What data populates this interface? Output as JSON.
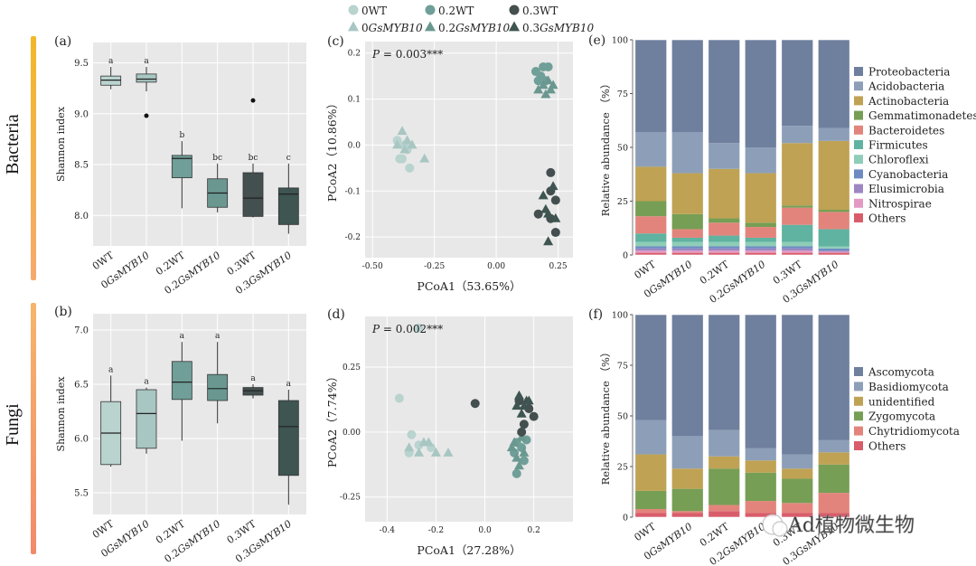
{
  "colors": {
    "wt0": "#b9d3cf",
    "gs0": "#a8c6c2",
    "wt02": "#6f9f98",
    "gs02": "#6a9891",
    "wt03": "#444f4f",
    "gs03": "#3e5551",
    "panel_bg": "#e8e8e8",
    "bacteria_bar_top": "#f3b728",
    "bacteria_bar_bottom": "#f5a96e",
    "fungi_bar_top": "#f6b56b",
    "fungi_bar_bottom": "#f28a6a"
  },
  "side_labels": {
    "bacteria": "Bacteria",
    "fungi": "Fungi"
  },
  "legend": {
    "items": [
      {
        "label": "0WT",
        "shape": "circle",
        "color": "#b9d3cf"
      },
      {
        "label": "0.2WT",
        "shape": "circle",
        "color": "#6f9f98"
      },
      {
        "label": "0.3WT",
        "shape": "circle",
        "color": "#444f4f"
      },
      {
        "label": "0GsMYB10",
        "shape": "triangle",
        "color": "#a8c6c2"
      },
      {
        "label": "0.2GsMYB10",
        "shape": "triangle",
        "color": "#6a9891"
      },
      {
        "label": "0.3GsMYB10",
        "shape": "triangle",
        "color": "#3e5551"
      }
    ]
  },
  "watermark": {
    "text": "Ad植物微生物",
    "icon": "wechat-icon"
  },
  "chart_data": [
    {
      "id": "a",
      "panel_label": "(a)",
      "type": "box",
      "ylabel": "Shannon index",
      "ylim": [
        7.7,
        9.7
      ],
      "yticks": [
        8.0,
        8.5,
        9.0,
        9.5
      ],
      "groups": [
        {
          "label": "0WT",
          "min": 9.24,
          "q1": 9.28,
          "median": 9.33,
          "q3": 9.37,
          "max": 9.46,
          "outliers": [],
          "letter": "a",
          "color": "#b9d3cf"
        },
        {
          "label": "0GsMYB10",
          "min": 9.22,
          "q1": 9.31,
          "median": 9.34,
          "q3": 9.39,
          "max": 9.46,
          "outliers": [
            8.98
          ],
          "letter": "a",
          "color": "#a8c6c2"
        },
        {
          "label": "0.2WT",
          "min": 8.07,
          "q1": 8.37,
          "median": 8.56,
          "q3": 8.59,
          "max": 8.73,
          "outliers": [],
          "letter": "b",
          "color": "#6f9f98"
        },
        {
          "label": "0.2GsMYB10",
          "min": 8.03,
          "q1": 8.08,
          "median": 8.22,
          "q3": 8.36,
          "max": 8.51,
          "outliers": [],
          "letter": "bc",
          "color": "#6a9891"
        },
        {
          "label": "0.3WT",
          "min": 7.98,
          "q1": 7.99,
          "median": 8.17,
          "q3": 8.42,
          "max": 8.51,
          "outliers": [
            9.13
          ],
          "letter": "bc",
          "color": "#444f4f"
        },
        {
          "label": "0.3GsMYB10",
          "min": 7.82,
          "q1": 7.91,
          "median": 8.21,
          "q3": 8.27,
          "max": 8.51,
          "outliers": [],
          "letter": "c",
          "color": "#3e5551"
        }
      ]
    },
    {
      "id": "b",
      "panel_label": "(b)",
      "type": "box",
      "ylabel": "Shannon index",
      "ylim": [
        5.3,
        7.15
      ],
      "yticks": [
        5.5,
        6.0,
        6.5,
        7.0
      ],
      "groups": [
        {
          "label": "0WT",
          "min": 5.74,
          "q1": 5.76,
          "median": 6.05,
          "q3": 6.34,
          "max": 6.58,
          "outliers": [],
          "letter": "a",
          "color": "#b9d3cf"
        },
        {
          "label": "0GsMYB10",
          "min": 5.86,
          "q1": 5.91,
          "median": 6.23,
          "q3": 6.45,
          "max": 6.47,
          "outliers": [],
          "letter": "a",
          "color": "#a8c6c2"
        },
        {
          "label": "0.2WT",
          "min": 5.98,
          "q1": 6.36,
          "median": 6.52,
          "q3": 6.71,
          "max": 6.89,
          "outliers": [],
          "letter": "a",
          "color": "#6f9f98"
        },
        {
          "label": "0.2GsMYB10",
          "min": 6.14,
          "q1": 6.35,
          "median": 6.46,
          "q3": 6.59,
          "max": 6.89,
          "outliers": [],
          "letter": "a",
          "color": "#6a9891"
        },
        {
          "label": "0.3WT",
          "min": 6.37,
          "q1": 6.4,
          "median": 6.44,
          "q3": 6.47,
          "max": 6.5,
          "outliers": [],
          "letter": "a",
          "color": "#444f4f"
        },
        {
          "label": "0.3GsMYB10",
          "min": 5.39,
          "q1": 5.66,
          "median": 6.11,
          "q3": 6.35,
          "max": 6.45,
          "outliers": [],
          "letter": "a",
          "color": "#3e5551"
        }
      ]
    },
    {
      "id": "c",
      "panel_label": "(c)",
      "type": "scatter",
      "xlabel": "PCoA1（53.65%）",
      "ylabel": "PCoA2（10.86%）",
      "annotation_p": "P",
      "annotation_value": " = 0.003***",
      "xlim": [
        -0.53,
        0.31
      ],
      "ylim": [
        -0.245,
        0.225
      ],
      "xticks": [
        -0.5,
        -0.25,
        0.0,
        0.25
      ],
      "xtick_labels": [
        "-0.50",
        "-0.25",
        "0.00",
        "0.25"
      ],
      "yticks": [
        -0.2,
        -0.1,
        0.0,
        0.1,
        0.2
      ],
      "ytick_labels": [
        "-0.2",
        "-0.1",
        "0.0",
        "0.1",
        "0.2"
      ],
      "series": [
        {
          "name": "0WT",
          "shape": "circle",
          "color": "#b9d3cf",
          "points": [
            [
              -0.4,
              0.01
            ],
            [
              -0.37,
              0.0
            ],
            [
              -0.39,
              -0.03
            ],
            [
              -0.36,
              -0.01
            ],
            [
              -0.35,
              -0.05
            ],
            [
              -0.38,
              -0.03
            ]
          ]
        },
        {
          "name": "0GsMYB10",
          "shape": "triangle",
          "color": "#a8c6c2",
          "points": [
            [
              -0.38,
              0.03
            ],
            [
              -0.34,
              0.0
            ],
            [
              -0.36,
              0.01
            ],
            [
              -0.4,
              0.0
            ],
            [
              -0.29,
              -0.03
            ],
            [
              -0.37,
              -0.01
            ]
          ]
        },
        {
          "name": "0.2WT",
          "shape": "circle",
          "color": "#6f9f98",
          "points": [
            [
              0.16,
              0.16
            ],
            [
              0.19,
              0.17
            ],
            [
              0.21,
              0.17
            ],
            [
              0.18,
              0.15
            ],
            [
              0.2,
              0.14
            ],
            [
              0.17,
              0.14
            ]
          ]
        },
        {
          "name": "0.2GsMYB10",
          "shape": "triangle",
          "color": "#6a9891",
          "points": [
            [
              0.19,
              0.13
            ],
            [
              0.21,
              0.14
            ],
            [
              0.23,
              0.13
            ],
            [
              0.17,
              0.12
            ],
            [
              0.2,
              0.11
            ],
            [
              0.22,
              0.12
            ]
          ]
        },
        {
          "name": "0.3WT",
          "shape": "circle",
          "color": "#444f4f",
          "points": [
            [
              0.22,
              -0.06
            ],
            [
              0.22,
              -0.1
            ],
            [
              0.24,
              -0.12
            ],
            [
              0.17,
              -0.15
            ],
            [
              0.22,
              -0.16
            ],
            [
              0.24,
              -0.19
            ]
          ]
        },
        {
          "name": "0.3GsMYB10",
          "shape": "triangle",
          "color": "#3e5551",
          "points": [
            [
              0.23,
              -0.09
            ],
            [
              0.19,
              -0.11
            ],
            [
              0.2,
              -0.14
            ],
            [
              0.21,
              -0.15
            ],
            [
              0.24,
              -0.16
            ],
            [
              0.21,
              -0.21
            ]
          ]
        }
      ]
    },
    {
      "id": "d",
      "panel_label": "(d)",
      "type": "scatter",
      "xlabel": "PCoA1（27.28%）",
      "ylabel": "PCoA2（7.74%）",
      "annotation_p": "P",
      "annotation_value": " = 0.002***",
      "xlim": [
        -0.49,
        0.36
      ],
      "ylim": [
        -0.345,
        0.445
      ],
      "xticks": [
        -0.4,
        -0.2,
        0.0,
        0.2
      ],
      "xtick_labels": [
        "-0.4",
        "-0.2",
        "0.0",
        "0.2"
      ],
      "yticks": [
        -0.25,
        0.0,
        0.25
      ],
      "ytick_labels": [
        "-0.25",
        "0.00",
        "0.25"
      ],
      "series": [
        {
          "name": "0WT",
          "shape": "circle",
          "color": "#b9d3cf",
          "points": [
            [
              -0.27,
              0.4
            ],
            [
              -0.35,
              0.13
            ],
            [
              -0.3,
              -0.01
            ],
            [
              -0.27,
              -0.05
            ],
            [
              -0.22,
              -0.06
            ],
            [
              -0.31,
              -0.08
            ]
          ]
        },
        {
          "name": "0GsMYB10",
          "shape": "triangle",
          "color": "#a8c6c2",
          "points": [
            [
              -0.27,
              -0.08
            ],
            [
              -0.23,
              -0.04
            ],
            [
              -0.2,
              -0.08
            ],
            [
              -0.15,
              -0.08
            ],
            [
              -0.31,
              -0.06
            ],
            [
              -0.25,
              -0.04
            ]
          ]
        },
        {
          "name": "0.2WT",
          "shape": "circle",
          "color": "#6f9f98",
          "points": [
            [
              0.13,
              -0.04
            ],
            [
              0.15,
              -0.06
            ],
            [
              0.12,
              -0.08
            ],
            [
              0.17,
              -0.03
            ],
            [
              0.13,
              -0.16
            ],
            [
              0.16,
              -0.11
            ]
          ]
        },
        {
          "name": "0.2GsMYB10",
          "shape": "triangle",
          "color": "#6a9891",
          "points": [
            [
              0.13,
              -0.1
            ],
            [
              0.16,
              -0.08
            ],
            [
              0.11,
              -0.06
            ],
            [
              0.15,
              -0.02
            ],
            [
              0.14,
              -0.13
            ],
            [
              0.12,
              -0.04
            ]
          ]
        },
        {
          "name": "0.3WT",
          "shape": "circle",
          "color": "#444f4f",
          "points": [
            [
              -0.04,
              0.11
            ],
            [
              0.2,
              0.06
            ],
            [
              0.18,
              0.09
            ],
            [
              0.15,
              0.0
            ],
            [
              0.14,
              0.12
            ],
            [
              0.16,
              0.03
            ]
          ]
        },
        {
          "name": "0.3GsMYB10",
          "shape": "triangle",
          "color": "#3e5551",
          "points": [
            [
              0.14,
              0.14
            ],
            [
              0.17,
              0.12
            ],
            [
              0.16,
              0.1
            ],
            [
              0.18,
              0.12
            ],
            [
              0.13,
              0.1
            ],
            [
              0.15,
              0.07
            ]
          ]
        }
      ]
    },
    {
      "id": "e",
      "panel_label": "(e)",
      "type": "stacked-bar",
      "ylabel": "Relative abundance （%）",
      "ylim": [
        0,
        100
      ],
      "yticks": [
        0,
        25,
        50,
        75,
        100
      ],
      "categories": [
        "0WT",
        "0GsMYB10",
        "0.2WT",
        "0.2GsMYB10",
        "0.3WT",
        "0.3GsMYB10"
      ],
      "stack_order_bottom_to_top": [
        "Others",
        "Nitrospirae",
        "Elusimicrobia",
        "Cyanobacteria",
        "Chloroflexi",
        "Firmicutes",
        "Bacteroidetes",
        "Gemmatimonadetes",
        "Actinobacteria",
        "Acidobacteria",
        "Proteobacteria"
      ],
      "series": [
        {
          "name": "Proteobacteria",
          "color": "#6f7f9e",
          "values": [
            43.0,
            43.0,
            48.0,
            50.0,
            40.0,
            41.0
          ]
        },
        {
          "name": "Acidobacteria",
          "color": "#8d9fb8",
          "values": [
            16.0,
            19.0,
            12.0,
            12.0,
            8.0,
            6.0
          ]
        },
        {
          "name": "Actinobacteria",
          "color": "#bfa253",
          "values": [
            16.0,
            19.0,
            23.0,
            23.0,
            29.0,
            32.0
          ]
        },
        {
          "name": "Gemmatimonadetes",
          "color": "#769e54",
          "values": [
            7.0,
            7.0,
            2.0,
            2.0,
            1.0,
            1.0
          ]
        },
        {
          "name": "Bacteroidetes",
          "color": "#e3847c",
          "values": [
            8.0,
            4.0,
            6.0,
            5.0,
            8.0,
            8.0
          ]
        },
        {
          "name": "Firmicutes",
          "color": "#5fb3a0",
          "values": [
            4.0,
            2.0,
            3.0,
            2.0,
            8.0,
            8.0
          ]
        },
        {
          "name": "Chloroflexi",
          "color": "#8fcdb8",
          "values": [
            2.0,
            2.0,
            2.0,
            2.0,
            2.0,
            1.0
          ]
        },
        {
          "name": "Cyanobacteria",
          "color": "#6e8ac2",
          "values": [
            1.0,
            1.0,
            1.0,
            1.0,
            1.0,
            1.0
          ]
        },
        {
          "name": "Elusimicrobia",
          "color": "#9d86c3",
          "values": [
            1.0,
            1.0,
            1.0,
            1.0,
            1.0,
            0.5
          ]
        },
        {
          "name": "Nitrospirae",
          "color": "#e39ac2",
          "values": [
            1.0,
            1.0,
            1.0,
            1.0,
            1.0,
            0.5
          ]
        },
        {
          "name": "Others",
          "color": "#d95c6b",
          "values": [
            1.0,
            1.0,
            1.0,
            1.0,
            1.0,
            1.0
          ]
        }
      ]
    },
    {
      "id": "f",
      "panel_label": "(f)",
      "type": "stacked-bar",
      "ylabel": "Relative abundance （%）",
      "ylim": [
        0,
        100
      ],
      "yticks": [
        0,
        25,
        50,
        75,
        100
      ],
      "categories": [
        "0WT",
        "0GsMYB10",
        "0.2WT",
        "0.2GsMYB10",
        "0.3WT",
        "0.3GsMYB10"
      ],
      "stack_order_bottom_to_top": [
        "Others",
        "Chytridiomycota",
        "Zygomycota",
        "unidentified",
        "Basidiomycota",
        "Ascomycota"
      ],
      "series": [
        {
          "name": "Ascomycota",
          "color": "#6f7f9e",
          "values": [
            52.0,
            60.0,
            57.0,
            66.0,
            69.0,
            62.0
          ]
        },
        {
          "name": "Basidiomycota",
          "color": "#8d9fb8",
          "values": [
            17.0,
            16.0,
            13.0,
            6.0,
            7.0,
            6.0
          ]
        },
        {
          "name": "unidentified",
          "color": "#bfa253",
          "values": [
            18.0,
            10.0,
            6.0,
            6.0,
            5.0,
            6.0
          ]
        },
        {
          "name": "Zygomycota",
          "color": "#769e54",
          "values": [
            9.0,
            11.0,
            18.0,
            14.0,
            12.0,
            14.0
          ]
        },
        {
          "name": "Chytridiomycota",
          "color": "#e3847c",
          "values": [
            2.0,
            1.0,
            3.0,
            6.0,
            5.0,
            10.0
          ]
        },
        {
          "name": "Others",
          "color": "#d95c6b",
          "values": [
            2.0,
            2.0,
            3.0,
            2.0,
            2.0,
            2.0
          ]
        }
      ]
    }
  ]
}
